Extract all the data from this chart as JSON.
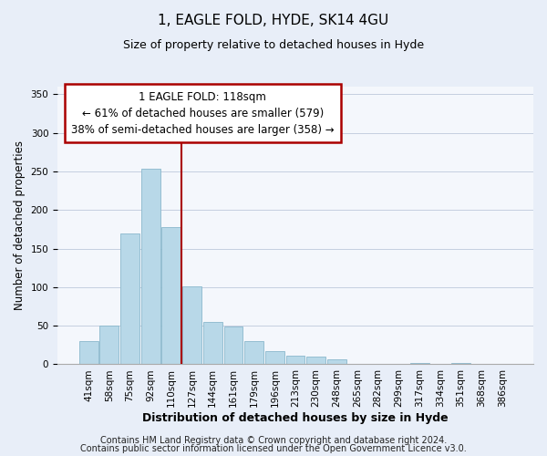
{
  "title": "1, EAGLE FOLD, HYDE, SK14 4GU",
  "subtitle": "Size of property relative to detached houses in Hyde",
  "xlabel": "Distribution of detached houses by size in Hyde",
  "ylabel": "Number of detached properties",
  "bar_labels": [
    "41sqm",
    "58sqm",
    "75sqm",
    "92sqm",
    "110sqm",
    "127sqm",
    "144sqm",
    "161sqm",
    "179sqm",
    "196sqm",
    "213sqm",
    "230sqm",
    "248sqm",
    "265sqm",
    "282sqm",
    "299sqm",
    "317sqm",
    "334sqm",
    "351sqm",
    "368sqm",
    "386sqm"
  ],
  "bar_values": [
    30,
    50,
    170,
    253,
    178,
    101,
    55,
    49,
    30,
    17,
    11,
    10,
    7,
    0,
    0,
    0,
    2,
    0,
    2,
    0,
    1
  ],
  "bar_color": "#b8d8e8",
  "bar_edge_color": "#8ab8cc",
  "vline_x_index": 4,
  "vline_color": "#aa0000",
  "annotation_line1": "1 EAGLE FOLD: 118sqm",
  "annotation_line2": "← 61% of detached houses are smaller (579)",
  "annotation_line3": "38% of semi-detached houses are larger (358) →",
  "ann_box_facecolor": "#ffffff",
  "ann_box_edgecolor": "#aa0000",
  "ylim": [
    0,
    360
  ],
  "yticks": [
    0,
    50,
    100,
    150,
    200,
    250,
    300,
    350
  ],
  "footer_line1": "Contains HM Land Registry data © Crown copyright and database right 2024.",
  "footer_line2": "Contains public sector information licensed under the Open Government Licence v3.0.",
  "bg_color": "#e8eef8",
  "plot_bg_color": "#f4f7fc",
  "grid_color": "#c5cfe0",
  "title_fontsize": 11,
  "subtitle_fontsize": 9,
  "xlabel_fontsize": 9,
  "ylabel_fontsize": 8.5,
  "tick_fontsize": 7.5,
  "footer_fontsize": 7,
  "ann_fontsize": 8.5
}
